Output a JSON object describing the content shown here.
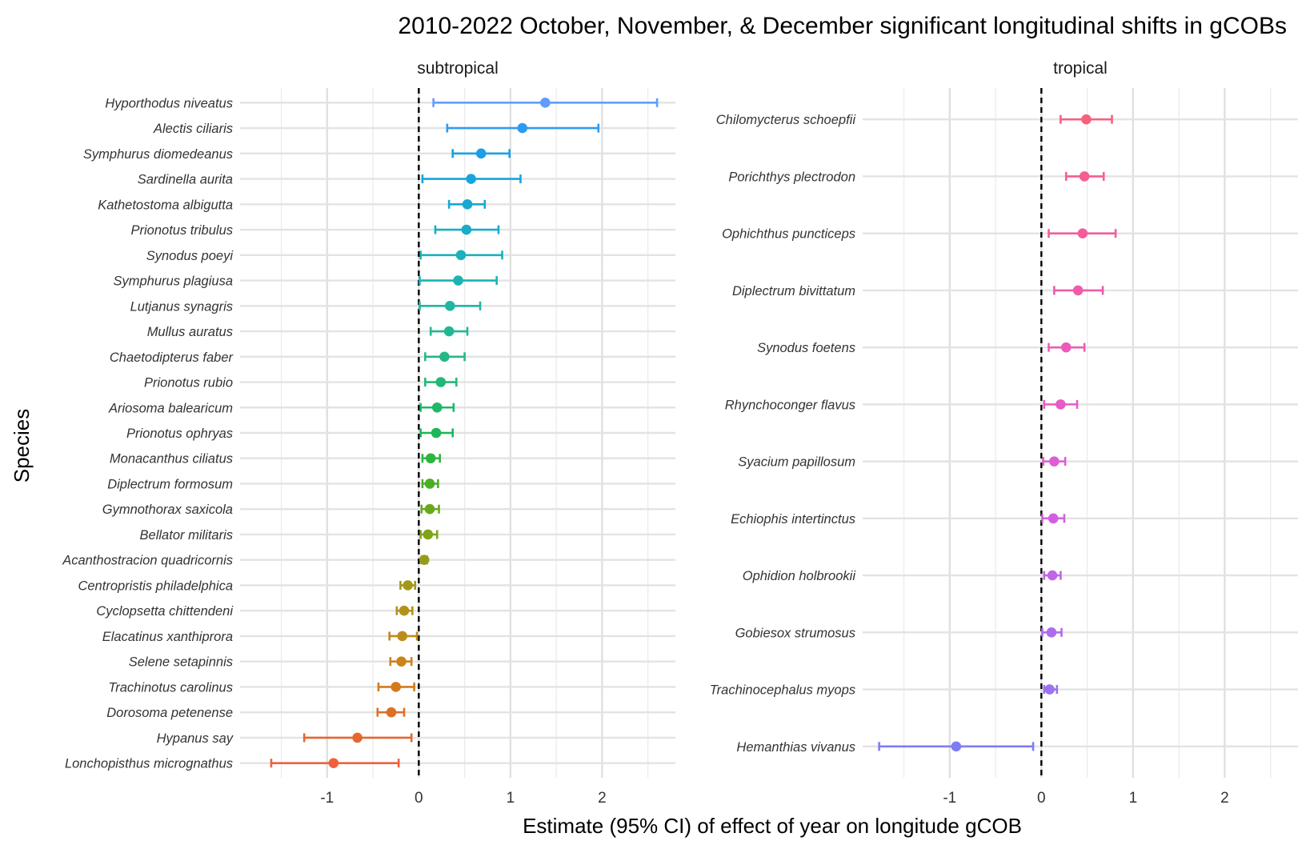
{
  "chart_data": {
    "type": "scatter",
    "title": "2010-2022 October, November, & December significant longitudinal shifts in gCOBs",
    "xlabel": "Estimate (95% CI) of effect of year on longitude gCOB",
    "ylabel": "Species",
    "xlim": [
      -1.95,
      2.8
    ],
    "x_ticks": [
      -1,
      0,
      1,
      2
    ],
    "x_tick_labels": [
      "-1",
      "0",
      "1",
      "2"
    ],
    "reference_line": 0,
    "grid": true,
    "legend": "none",
    "panels": [
      {
        "name": "subtropical",
        "rows": [
          {
            "species": "Hyporthodus niveatus",
            "estimate": 1.38,
            "lower": 0.16,
            "upper": 2.6,
            "color": "#619CFF"
          },
          {
            "species": "Alectis ciliaris",
            "estimate": 1.13,
            "lower": 0.31,
            "upper": 1.96,
            "color": "#2F9BF0"
          },
          {
            "species": "Symphurus diomedeanus",
            "estimate": 0.68,
            "lower": 0.37,
            "upper": 0.99,
            "color": "#1AA0E6"
          },
          {
            "species": "Sardinella aurita",
            "estimate": 0.57,
            "lower": 0.04,
            "upper": 1.11,
            "color": "#18A5DC"
          },
          {
            "species": "Kathetostoma albigutta",
            "estimate": 0.53,
            "lower": 0.33,
            "upper": 0.72,
            "color": "#17A9D2"
          },
          {
            "species": "Prionotus tribulus",
            "estimate": 0.52,
            "lower": 0.18,
            "upper": 0.87,
            "color": "#17ADC8"
          },
          {
            "species": "Synodus poeyi",
            "estimate": 0.46,
            "lower": 0.02,
            "upper": 0.91,
            "color": "#19B1BD"
          },
          {
            "species": "Symphurus plagiusa",
            "estimate": 0.43,
            "lower": 0.01,
            "upper": 0.85,
            "color": "#1CB4B0"
          },
          {
            "species": "Lutjanus synagris",
            "estimate": 0.34,
            "lower": 0.01,
            "upper": 0.67,
            "color": "#1FB6A2"
          },
          {
            "species": "Mullus auratus",
            "estimate": 0.33,
            "lower": 0.13,
            "upper": 0.53,
            "color": "#21B794"
          },
          {
            "species": "Chaetodipterus faber",
            "estimate": 0.28,
            "lower": 0.07,
            "upper": 0.5,
            "color": "#24B886"
          },
          {
            "species": "Prionotus rubio",
            "estimate": 0.24,
            "lower": 0.07,
            "upper": 0.41,
            "color": "#22B878"
          },
          {
            "species": "Ariosoma balearicum",
            "estimate": 0.2,
            "lower": 0.02,
            "upper": 0.38,
            "color": "#1EB86A"
          },
          {
            "species": "Prionotus ophryas",
            "estimate": 0.19,
            "lower": 0.02,
            "upper": 0.37,
            "color": "#1DB65A"
          },
          {
            "species": "Monacanthus ciliatus",
            "estimate": 0.13,
            "lower": 0.04,
            "upper": 0.23,
            "color": "#2EB43F"
          },
          {
            "species": "Diplectrum formosum",
            "estimate": 0.12,
            "lower": 0.04,
            "upper": 0.21,
            "color": "#4BAF25"
          },
          {
            "species": "Gymnothorax saxicola",
            "estimate": 0.12,
            "lower": 0.03,
            "upper": 0.22,
            "color": "#68A91B"
          },
          {
            "species": "Bellator militaris",
            "estimate": 0.1,
            "lower": 0.02,
            "upper": 0.2,
            "color": "#7FA31A"
          },
          {
            "species": "Acanthostracion quadricornis",
            "estimate": 0.06,
            "lower": 0.03,
            "upper": 0.09,
            "color": "#939D18"
          },
          {
            "species": "Centropristis philadelphica",
            "estimate": -0.12,
            "lower": -0.2,
            "upper": -0.04,
            "color": "#A49819"
          },
          {
            "species": "Cyclopsetta chittendeni",
            "estimate": -0.16,
            "lower": -0.24,
            "upper": -0.07,
            "color": "#B2921B"
          },
          {
            "species": "Elacatinus xanthiprora",
            "estimate": -0.18,
            "lower": -0.32,
            "upper": -0.02,
            "color": "#BE8B1B"
          },
          {
            "species": "Selene setapinnis",
            "estimate": -0.19,
            "lower": -0.31,
            "upper": -0.08,
            "color": "#C9831C"
          },
          {
            "species": "Trachinotus carolinus",
            "estimate": -0.25,
            "lower": -0.44,
            "upper": -0.05,
            "color": "#D37A1F"
          },
          {
            "species": "Dorosoma petenense",
            "estimate": -0.3,
            "lower": -0.45,
            "upper": -0.16,
            "color": "#DC7024"
          },
          {
            "species": "Hypanus say",
            "estimate": -0.67,
            "lower": -1.25,
            "upper": -0.08,
            "color": "#E6662F"
          },
          {
            "species": "Lonchopisthus micrognathus",
            "estimate": -0.93,
            "lower": -1.61,
            "upper": -0.22,
            "color": "#F0603F"
          }
        ]
      },
      {
        "name": "tropical",
        "rows": [
          {
            "species": "Chilomycterus schoepfii",
            "estimate": 0.49,
            "lower": 0.21,
            "upper": 0.77,
            "color": "#F8607F"
          },
          {
            "species": "Porichthys plectrodon",
            "estimate": 0.47,
            "lower": 0.27,
            "upper": 0.68,
            "color": "#F65E8E"
          },
          {
            "species": "Ophichthus puncticeps",
            "estimate": 0.45,
            "lower": 0.08,
            "upper": 0.81,
            "color": "#F35C9C"
          },
          {
            "species": "Diplectrum bivittatum",
            "estimate": 0.4,
            "lower": 0.14,
            "upper": 0.67,
            "color": "#F05BAB"
          },
          {
            "species": "Synodus foetens",
            "estimate": 0.27,
            "lower": 0.08,
            "upper": 0.47,
            "color": "#EC5BB9"
          },
          {
            "species": "Rhynchoconger flavus",
            "estimate": 0.21,
            "lower": 0.03,
            "upper": 0.39,
            "color": "#E75BC7"
          },
          {
            "species": "Syacium papillosum",
            "estimate": 0.14,
            "lower": 0.02,
            "upper": 0.26,
            "color": "#DE5DD4"
          },
          {
            "species": "Echiophis intertinctus",
            "estimate": 0.13,
            "lower": 0.01,
            "upper": 0.25,
            "color": "#D160DF"
          },
          {
            "species": "Ophidion holbrookii",
            "estimate": 0.12,
            "lower": 0.03,
            "upper": 0.21,
            "color": "#C165E7"
          },
          {
            "species": "Gobiesox strumosus",
            "estimate": 0.11,
            "lower": 0.01,
            "upper": 0.22,
            "color": "#AF6BEE"
          },
          {
            "species": "Trachinocephalus myops",
            "estimate": 0.09,
            "lower": 0.03,
            "upper": 0.17,
            "color": "#9B72F2"
          },
          {
            "species": "Hemanthias vivanus",
            "estimate": -0.93,
            "lower": -1.77,
            "upper": -0.09,
            "color": "#7E7CF4"
          }
        ]
      }
    ]
  }
}
